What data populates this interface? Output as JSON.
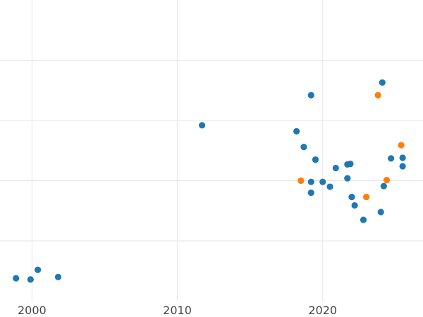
{
  "chart_data": {
    "type": "scatter",
    "title": "",
    "xlabel": "",
    "ylabel": "",
    "xlim": [
      1997.8,
      2026.9
    ],
    "ylim": [
      0,
      5
    ],
    "x_ticks": [
      2000,
      2010,
      2020
    ],
    "x_tick_labels": [
      "2000",
      "2010",
      "2020"
    ],
    "y_gridlines": [
      1,
      2,
      3,
      4
    ],
    "grid": true,
    "legend": "none",
    "series": [
      {
        "color": "#1f77b4",
        "points": [
          {
            "x": 1998.9,
            "y": 0.38
          },
          {
            "x": 1999.9,
            "y": 0.36
          },
          {
            "x": 2000.4,
            "y": 0.52
          },
          {
            "x": 2001.8,
            "y": 0.4
          },
          {
            "x": 2011.7,
            "y": 2.92
          },
          {
            "x": 2018.2,
            "y": 2.82
          },
          {
            "x": 2018.7,
            "y": 2.56
          },
          {
            "x": 2019.2,
            "y": 3.42
          },
          {
            "x": 2019.2,
            "y": 1.98
          },
          {
            "x": 2019.2,
            "y": 1.8
          },
          {
            "x": 2019.5,
            "y": 2.35
          },
          {
            "x": 2020.0,
            "y": 1.98
          },
          {
            "x": 2020.5,
            "y": 1.9
          },
          {
            "x": 2020.9,
            "y": 2.21
          },
          {
            "x": 2021.7,
            "y": 2.04
          },
          {
            "x": 2021.7,
            "y": 2.27
          },
          {
            "x": 2021.9,
            "y": 2.28
          },
          {
            "x": 2022.0,
            "y": 1.73
          },
          {
            "x": 2022.2,
            "y": 1.59
          },
          {
            "x": 2022.8,
            "y": 1.35
          },
          {
            "x": 2024.0,
            "y": 1.48
          },
          {
            "x": 2024.1,
            "y": 3.63
          },
          {
            "x": 2024.2,
            "y": 1.91
          },
          {
            "x": 2024.7,
            "y": 2.37
          },
          {
            "x": 2025.5,
            "y": 2.38
          },
          {
            "x": 2025.5,
            "y": 2.24
          }
        ]
      },
      {
        "color": "#ff7f0e",
        "points": [
          {
            "x": 2018.5,
            "y": 2.0
          },
          {
            "x": 2023.0,
            "y": 1.73
          },
          {
            "x": 2023.8,
            "y": 3.42
          },
          {
            "x": 2024.4,
            "y": 2.01
          },
          {
            "x": 2025.4,
            "y": 2.59
          }
        ]
      }
    ]
  }
}
